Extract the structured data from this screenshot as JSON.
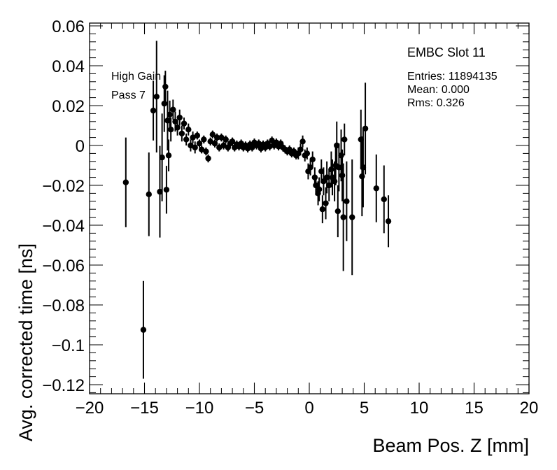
{
  "chart_data": {
    "type": "scatter",
    "xlabel": "Beam Pos. Z [mm]",
    "ylabel": "Avg. corrected time [ns]",
    "xlim": [
      -20,
      20
    ],
    "ylim": [
      -0.125,
      0.0615
    ],
    "x_ticks": [
      -20,
      -15,
      -10,
      -5,
      0,
      5,
      10,
      15,
      20
    ],
    "x_tick_labels": [
      "−20",
      "−15",
      "−10",
      "−5",
      "0",
      "5",
      "10",
      "15",
      "20"
    ],
    "y_ticks": [
      -0.12,
      -0.1,
      -0.08,
      -0.06,
      -0.04,
      -0.02,
      0,
      0.02,
      0.04,
      0.06
    ],
    "y_tick_labels": [
      "−0.12",
      "−0.1",
      "−0.08",
      "−0.06",
      "−0.04",
      "−0.02",
      "0",
      "0.02",
      "0.04",
      "0.06"
    ],
    "grid": false,
    "annotations": [
      "High Gain",
      "Pass 7"
    ],
    "stats_box": {
      "title": "EMBC Slot 11",
      "lines": [
        "Entries: 11894135",
        "Mean: 0.000",
        "Rms: 0.326"
      ]
    },
    "points": [
      {
        "x": -16.7,
        "y": -0.0185,
        "err": 0.0225
      },
      {
        "x": -15.1,
        "y": -0.0925,
        "err": 0.0245
      },
      {
        "x": -14.6,
        "y": -0.0245,
        "err": 0.021
      },
      {
        "x": -14.2,
        "y": 0.0175,
        "err": 0.015
      },
      {
        "x": -13.9,
        "y": 0.0245,
        "err": 0.028
      },
      {
        "x": -13.6,
        "y": -0.0232,
        "err": 0.023
      },
      {
        "x": -13.4,
        "y": -0.006,
        "err": 0.022
      },
      {
        "x": -13.2,
        "y": 0.021,
        "err": 0.0142
      },
      {
        "x": -13.1,
        "y": 0.0295,
        "err": 0.008
      },
      {
        "x": -13.0,
        "y": -0.0222,
        "err": 0.012
      },
      {
        "x": -12.9,
        "y": 0.0125,
        "err": 0.015
      },
      {
        "x": -12.8,
        "y": -0.005,
        "err": 0.008
      },
      {
        "x": -12.7,
        "y": 0.0155,
        "err": 0.007
      },
      {
        "x": -12.6,
        "y": 0.008,
        "err": 0.006
      },
      {
        "x": -12.4,
        "y": 0.018,
        "err": 0.005
      },
      {
        "x": -12.2,
        "y": 0.012,
        "err": 0.005
      },
      {
        "x": -12.0,
        "y": 0.009,
        "err": 0.004
      },
      {
        "x": -11.8,
        "y": 0.014,
        "err": 0.004
      },
      {
        "x": -11.6,
        "y": 0.006,
        "err": 0.004
      },
      {
        "x": -11.4,
        "y": 0.011,
        "err": 0.003
      },
      {
        "x": -11.2,
        "y": 0.003,
        "err": 0.003
      },
      {
        "x": -11.0,
        "y": 0.008,
        "err": 0.003
      },
      {
        "x": -10.8,
        "y": 0.0,
        "err": 0.003
      },
      {
        "x": -10.6,
        "y": 0.004,
        "err": 0.003
      },
      {
        "x": -10.4,
        "y": -0.001,
        "err": 0.003
      },
      {
        "x": -10.2,
        "y": 0.005,
        "err": 0.002
      },
      {
        "x": -10.0,
        "y": 0.001,
        "err": 0.002
      },
      {
        "x": -9.8,
        "y": -0.002,
        "err": 0.002
      },
      {
        "x": -9.6,
        "y": 0.003,
        "err": 0.002
      },
      {
        "x": -9.4,
        "y": -0.003,
        "err": 0.002
      },
      {
        "x": -9.2,
        "y": -0.0065,
        "err": 0.002
      },
      {
        "x": -9.0,
        "y": 0.002,
        "err": 0.002
      },
      {
        "x": -8.8,
        "y": 0.0055,
        "err": 0.002
      },
      {
        "x": -8.6,
        "y": 0.001,
        "err": 0.002
      },
      {
        "x": -8.4,
        "y": 0.004,
        "err": 0.002
      },
      {
        "x": -8.2,
        "y": -0.001,
        "err": 0.002
      },
      {
        "x": -8.0,
        "y": 0.004,
        "err": 0.002
      },
      {
        "x": -7.8,
        "y": 0.0,
        "err": 0.002
      },
      {
        "x": -7.6,
        "y": 0.003,
        "err": 0.002
      },
      {
        "x": -7.4,
        "y": -0.001,
        "err": 0.002
      },
      {
        "x": -7.2,
        "y": 0.001,
        "err": 0.002
      },
      {
        "x": -7.0,
        "y": 0.002,
        "err": 0.002
      },
      {
        "x": -6.8,
        "y": -0.001,
        "err": 0.002
      },
      {
        "x": -6.6,
        "y": 0.0005,
        "err": 0.002
      },
      {
        "x": -6.4,
        "y": -0.0005,
        "err": 0.002
      },
      {
        "x": -6.2,
        "y": 0.001,
        "err": 0.002
      },
      {
        "x": -6.0,
        "y": -0.001,
        "err": 0.002
      },
      {
        "x": -5.8,
        "y": 0.0,
        "err": 0.002
      },
      {
        "x": -5.6,
        "y": -0.0015,
        "err": 0.002
      },
      {
        "x": -5.4,
        "y": 0.0005,
        "err": 0.002
      },
      {
        "x": -5.2,
        "y": -0.001,
        "err": 0.002
      },
      {
        "x": -5.0,
        "y": 0.0015,
        "err": 0.002
      },
      {
        "x": -4.8,
        "y": 0.0,
        "err": 0.002
      },
      {
        "x": -4.6,
        "y": 0.001,
        "err": 0.002
      },
      {
        "x": -4.4,
        "y": -0.0015,
        "err": 0.002
      },
      {
        "x": -4.2,
        "y": 0.0005,
        "err": 0.002
      },
      {
        "x": -4.0,
        "y": -0.001,
        "err": 0.002
      },
      {
        "x": -3.8,
        "y": 0.001,
        "err": 0.002
      },
      {
        "x": -3.6,
        "y": -0.0005,
        "err": 0.002
      },
      {
        "x": -3.4,
        "y": 0.0025,
        "err": 0.002
      },
      {
        "x": -3.2,
        "y": 0.0,
        "err": 0.002
      },
      {
        "x": -3.0,
        "y": 0.0015,
        "err": 0.002
      },
      {
        "x": -2.8,
        "y": -0.0005,
        "err": 0.002
      },
      {
        "x": -2.6,
        "y": 0.001,
        "err": 0.002
      },
      {
        "x": -2.4,
        "y": -0.001,
        "err": 0.002
      },
      {
        "x": -2.2,
        "y": -0.002,
        "err": 0.002
      },
      {
        "x": -2.0,
        "y": -0.003,
        "err": 0.002
      },
      {
        "x": -1.8,
        "y": -0.002,
        "err": 0.002
      },
      {
        "x": -1.6,
        "y": -0.004,
        "err": 0.002
      },
      {
        "x": -1.4,
        "y": -0.003,
        "err": 0.002
      },
      {
        "x": -1.2,
        "y": -0.005,
        "err": 0.002
      },
      {
        "x": -1.0,
        "y": -0.004,
        "err": 0.003
      },
      {
        "x": -0.8,
        "y": -0.002,
        "err": 0.003
      },
      {
        "x": -0.6,
        "y": 0.002,
        "err": 0.003
      },
      {
        "x": -0.4,
        "y": -0.005,
        "err": 0.003
      },
      {
        "x": -0.2,
        "y": -0.004,
        "err": 0.003
      },
      {
        "x": -0.1,
        "y": -0.013,
        "err": 0.004
      },
      {
        "x": 0.1,
        "y": -0.011,
        "err": 0.004
      },
      {
        "x": 0.3,
        "y": -0.007,
        "err": 0.004
      },
      {
        "x": 0.5,
        "y": -0.016,
        "err": 0.005
      },
      {
        "x": 0.6,
        "y": -0.02,
        "err": 0.005
      },
      {
        "x": 0.8,
        "y": -0.024,
        "err": 0.006
      },
      {
        "x": 0.9,
        "y": -0.022,
        "err": 0.006
      },
      {
        "x": 1.1,
        "y": -0.013,
        "err": 0.006
      },
      {
        "x": 1.2,
        "y": -0.032,
        "err": 0.007
      },
      {
        "x": 1.3,
        "y": -0.018,
        "err": 0.007
      },
      {
        "x": 1.5,
        "y": -0.029,
        "err": 0.008
      },
      {
        "x": 1.6,
        "y": -0.016,
        "err": 0.008
      },
      {
        "x": 1.8,
        "y": -0.02,
        "err": 0.008
      },
      {
        "x": 2.0,
        "y": -0.012,
        "err": 0.009
      },
      {
        "x": 2.1,
        "y": -0.016,
        "err": 0.009
      },
      {
        "x": 2.3,
        "y": -0.018,
        "err": 0.01
      },
      {
        "x": 2.4,
        "y": -0.01,
        "err": 0.01
      },
      {
        "x": 2.5,
        "y": 0.0,
        "err": 0.012
      },
      {
        "x": 2.6,
        "y": -0.033,
        "err": 0.013
      },
      {
        "x": 2.7,
        "y": -0.011,
        "err": 0.012
      },
      {
        "x": 2.9,
        "y": -0.005,
        "err": 0.013
      },
      {
        "x": 3.0,
        "y": -0.015,
        "err": 0.013
      },
      {
        "x": 3.1,
        "y": -0.036,
        "err": 0.027
      },
      {
        "x": 3.2,
        "y": 0.003,
        "err": 0.008
      },
      {
        "x": 3.4,
        "y": -0.028,
        "err": 0.02
      },
      {
        "x": 3.9,
        "y": -0.036,
        "err": 0.029
      },
      {
        "x": 4.7,
        "y": 0.003,
        "err": 0.015
      },
      {
        "x": 4.8,
        "y": -0.0155,
        "err": 0.02
      },
      {
        "x": 4.9,
        "y": -0.011,
        "err": 0.02
      },
      {
        "x": 5.1,
        "y": 0.0085,
        "err": 0.023
      },
      {
        "x": 6.1,
        "y": -0.0215,
        "err": 0.017
      },
      {
        "x": 6.8,
        "y": -0.027,
        "err": 0.017
      },
      {
        "x": 7.2,
        "y": -0.038,
        "err": 0.013
      }
    ]
  }
}
